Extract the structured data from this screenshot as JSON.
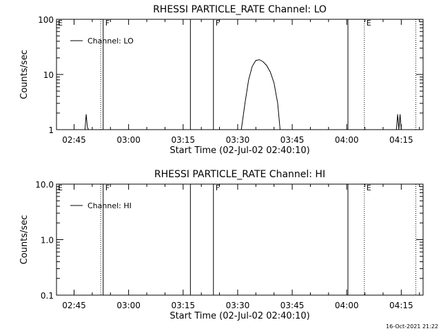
{
  "chart_data": [
    {
      "type": "line",
      "title": "RHESSI PARTICLE_RATE Channel: LO",
      "xlabel": "Start Time (02-Jul-02 02:40:10)",
      "ylabel": "Counts/sec",
      "yscale": "log",
      "ylim": [
        1,
        100
      ],
      "xlim": [
        "02:40:10",
        "04:21:00"
      ],
      "xticks": [
        "02:45",
        "03:00",
        "03:15",
        "03:30",
        "03:45",
        "04:00",
        "04:15"
      ],
      "yticks": [
        "1",
        "10",
        "100"
      ],
      "legend": {
        "placement": "top-left",
        "entries": [
          "Channel: LO"
        ]
      },
      "series": [
        {
          "name": "Channel: LO",
          "segments": [
            {
              "x": [
                "02:48:00",
                "02:48:20",
                "02:48:40",
                "02:49:00"
              ],
              "y": [
                1,
                1.9,
                1.1,
                1
              ]
            },
            {
              "x": [
                "03:31:00",
                "03:32:00",
                "03:33:00",
                "03:34:00",
                "03:35:00",
                "03:36:00",
                "03:37:00",
                "03:38:00",
                "03:39:00",
                "03:40:00",
                "03:41:00",
                "03:41:40"
              ],
              "y": [
                1,
                3,
                8,
                14,
                18,
                18.5,
                17,
                14.5,
                11,
                7,
                3,
                1
              ]
            },
            {
              "x": [
                "04:13:40",
                "04:14:00",
                "04:14:20",
                "04:14:40",
                "04:15:00",
                "04:15:30"
              ],
              "y": [
                1,
                1.9,
                1,
                1.9,
                1,
                1
              ]
            }
          ]
        }
      ],
      "markers": [
        {
          "time": "02:52:20",
          "style": "dotted"
        },
        {
          "time": "02:53:00",
          "style": "solid",
          "label": "F"
        },
        {
          "time": "03:17:00",
          "style": "solid"
        },
        {
          "time": "03:23:20",
          "style": "solid",
          "label": "F"
        },
        {
          "time": "04:00:20",
          "style": "solid"
        },
        {
          "time": "04:04:50",
          "style": "dotted",
          "label": "E"
        },
        {
          "time": "04:19:00",
          "style": "dotted"
        }
      ],
      "corner_label": "E"
    },
    {
      "type": "line",
      "title": "RHESSI PARTICLE_RATE Channel: HI",
      "xlabel": "Start Time (02-Jul-02 02:40:10)",
      "ylabel": "Counts/sec",
      "yscale": "log",
      "ylim": [
        0.1,
        10
      ],
      "xlim": [
        "02:40:10",
        "04:21:00"
      ],
      "xticks": [
        "02:45",
        "03:00",
        "03:15",
        "03:30",
        "03:45",
        "04:00",
        "04:15"
      ],
      "yticks": [
        "0.1",
        "1.0",
        "10.0"
      ],
      "legend": {
        "placement": "top-left",
        "entries": [
          "Channel: HI"
        ]
      },
      "series": [
        {
          "name": "Channel: HI",
          "segments": []
        }
      ],
      "markers": [
        {
          "time": "02:52:20",
          "style": "dotted"
        },
        {
          "time": "02:53:00",
          "style": "solid",
          "label": "F"
        },
        {
          "time": "03:17:00",
          "style": "solid"
        },
        {
          "time": "03:23:20",
          "style": "solid",
          "label": "F"
        },
        {
          "time": "04:00:20",
          "style": "solid"
        },
        {
          "time": "04:04:50",
          "style": "dotted",
          "label": "E"
        },
        {
          "time": "04:19:00",
          "style": "dotted"
        }
      ],
      "corner_label": "E"
    }
  ],
  "footer": {
    "timestamp": "16-Oct-2021 21:22"
  }
}
